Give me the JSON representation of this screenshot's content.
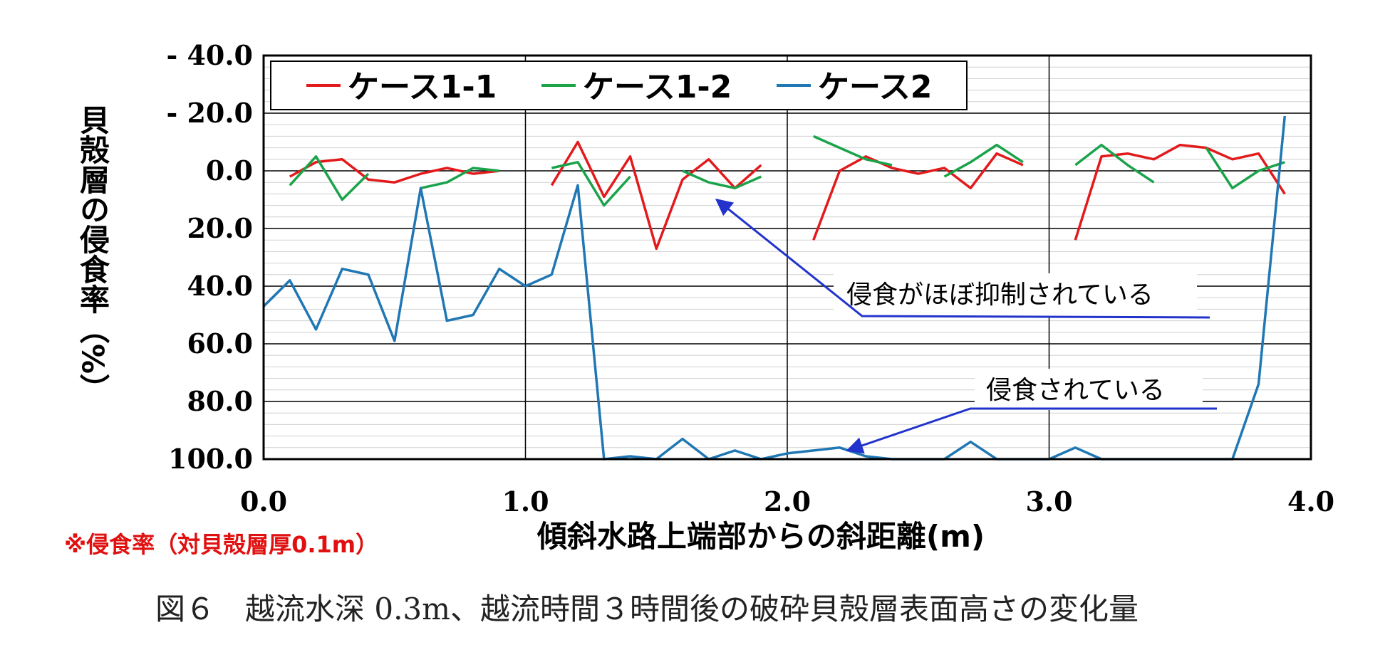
{
  "chart_data": {
    "type": "line",
    "ylabel": "貝殻層の侵食率（%）",
    "xlabel": "傾斜水路上端部からの斜距離(m)",
    "caption": "図６　越流水深 0.3m、越流時間３時間後の破砕貝殻層表面高さの変化量",
    "note": "※侵食率（対貝殻層厚0.1m）",
    "xlim": [
      0.0,
      4.0
    ],
    "ylim": [
      -40.0,
      100.0
    ],
    "y_inverted": true,
    "x_ticks": [
      "0.0",
      "1.0",
      "2.0",
      "3.0",
      "4.0"
    ],
    "y_ticks": [
      "- 40.0",
      "- 20.0",
      "0.0",
      "20.0",
      "40.0",
      "60.0",
      "80.0",
      "100.0"
    ],
    "grid": true,
    "legend_position": "top-left",
    "series": [
      {
        "name": "ケース1-1",
        "color": "#e31a1c",
        "segments": [
          [
            [
              0.1,
              2
            ],
            [
              0.2,
              -3
            ],
            [
              0.3,
              -4
            ],
            [
              0.4,
              3
            ],
            [
              0.5,
              4
            ],
            [
              0.6,
              1
            ],
            [
              0.7,
              -1
            ],
            [
              0.8,
              1
            ],
            [
              0.9,
              0
            ]
          ],
          [
            [
              1.1,
              5
            ],
            [
              1.2,
              -10
            ],
            [
              1.3,
              9
            ],
            [
              1.4,
              -5
            ],
            [
              1.5,
              27
            ],
            [
              1.6,
              3
            ],
            [
              1.7,
              -4
            ],
            [
              1.8,
              6
            ],
            [
              1.9,
              -2
            ]
          ],
          [
            [
              2.1,
              24
            ],
            [
              2.2,
              0
            ],
            [
              2.3,
              -5
            ],
            [
              2.4,
              -1
            ],
            [
              2.5,
              1
            ],
            [
              2.6,
              -1
            ],
            [
              2.7,
              6
            ],
            [
              2.8,
              -6
            ],
            [
              2.9,
              -2
            ]
          ],
          [
            [
              3.1,
              24
            ],
            [
              3.2,
              -5
            ],
            [
              3.3,
              -6
            ],
            [
              3.4,
              -4
            ],
            [
              3.5,
              -9
            ],
            [
              3.6,
              -8
            ],
            [
              3.7,
              -4
            ],
            [
              3.8,
              -6
            ],
            [
              3.9,
              8
            ]
          ]
        ]
      },
      {
        "name": "ケース1-2",
        "color": "#1aa34a",
        "segments": [
          [
            [
              0.1,
              5
            ],
            [
              0.2,
              -5
            ],
            [
              0.3,
              10
            ],
            [
              0.4,
              1
            ]
          ],
          [
            [
              0.6,
              6
            ],
            [
              0.7,
              4
            ],
            [
              0.8,
              -1
            ],
            [
              0.9,
              0
            ]
          ],
          [
            [
              1.1,
              -1
            ],
            [
              1.2,
              -3
            ],
            [
              1.3,
              12
            ],
            [
              1.4,
              2
            ]
          ],
          [
            [
              1.6,
              0
            ],
            [
              1.7,
              4
            ],
            [
              1.8,
              6
            ],
            [
              1.9,
              2
            ]
          ],
          [
            [
              2.1,
              -12
            ],
            [
              2.2,
              -8
            ],
            [
              2.3,
              -4
            ],
            [
              2.4,
              -2
            ]
          ],
          [
            [
              2.6,
              2
            ],
            [
              2.7,
              -3
            ],
            [
              2.8,
              -9
            ],
            [
              2.9,
              -3
            ]
          ],
          [
            [
              3.1,
              -2
            ],
            [
              3.2,
              -9
            ],
            [
              3.3,
              -2
            ],
            [
              3.4,
              4
            ]
          ],
          [
            [
              3.6,
              -8
            ],
            [
              3.7,
              6
            ],
            [
              3.8,
              0
            ],
            [
              3.9,
              -3
            ]
          ]
        ]
      },
      {
        "name": "ケース2",
        "color": "#1f77b4",
        "segments": [
          [
            [
              0.0,
              47
            ],
            [
              0.1,
              38
            ],
            [
              0.2,
              55
            ],
            [
              0.3,
              34
            ],
            [
              0.4,
              36
            ],
            [
              0.5,
              59
            ],
            [
              0.6,
              6
            ],
            [
              0.7,
              52
            ],
            [
              0.8,
              50
            ],
            [
              0.9,
              34
            ],
            [
              1.0,
              40
            ],
            [
              1.1,
              36
            ],
            [
              1.2,
              5
            ],
            [
              1.3,
              100
            ],
            [
              1.4,
              99
            ],
            [
              1.5,
              100
            ],
            [
              1.6,
              93
            ],
            [
              1.7,
              100
            ],
            [
              1.8,
              97
            ],
            [
              1.9,
              100
            ],
            [
              2.0,
              98
            ],
            [
              2.1,
              97
            ],
            [
              2.2,
              96
            ],
            [
              2.3,
              99
            ],
            [
              2.4,
              100
            ],
            [
              2.5,
              100
            ],
            [
              2.6,
              100
            ],
            [
              2.7,
              94
            ],
            [
              2.8,
              100
            ],
            [
              2.9,
              100
            ],
            [
              3.0,
              100
            ],
            [
              3.1,
              96
            ],
            [
              3.2,
              100
            ],
            [
              3.3,
              100
            ],
            [
              3.4,
              100
            ],
            [
              3.5,
              100
            ],
            [
              3.6,
              100
            ],
            [
              3.7,
              100
            ],
            [
              3.8,
              74
            ],
            [
              3.9,
              -19
            ]
          ]
        ]
      }
    ],
    "annotations": [
      {
        "text": "侵食がほぼ抑制されている",
        "arrow_to": [
          1.73,
          10
        ]
      },
      {
        "text": "侵食されている",
        "arrow_to": [
          2.23,
          97
        ]
      }
    ]
  }
}
